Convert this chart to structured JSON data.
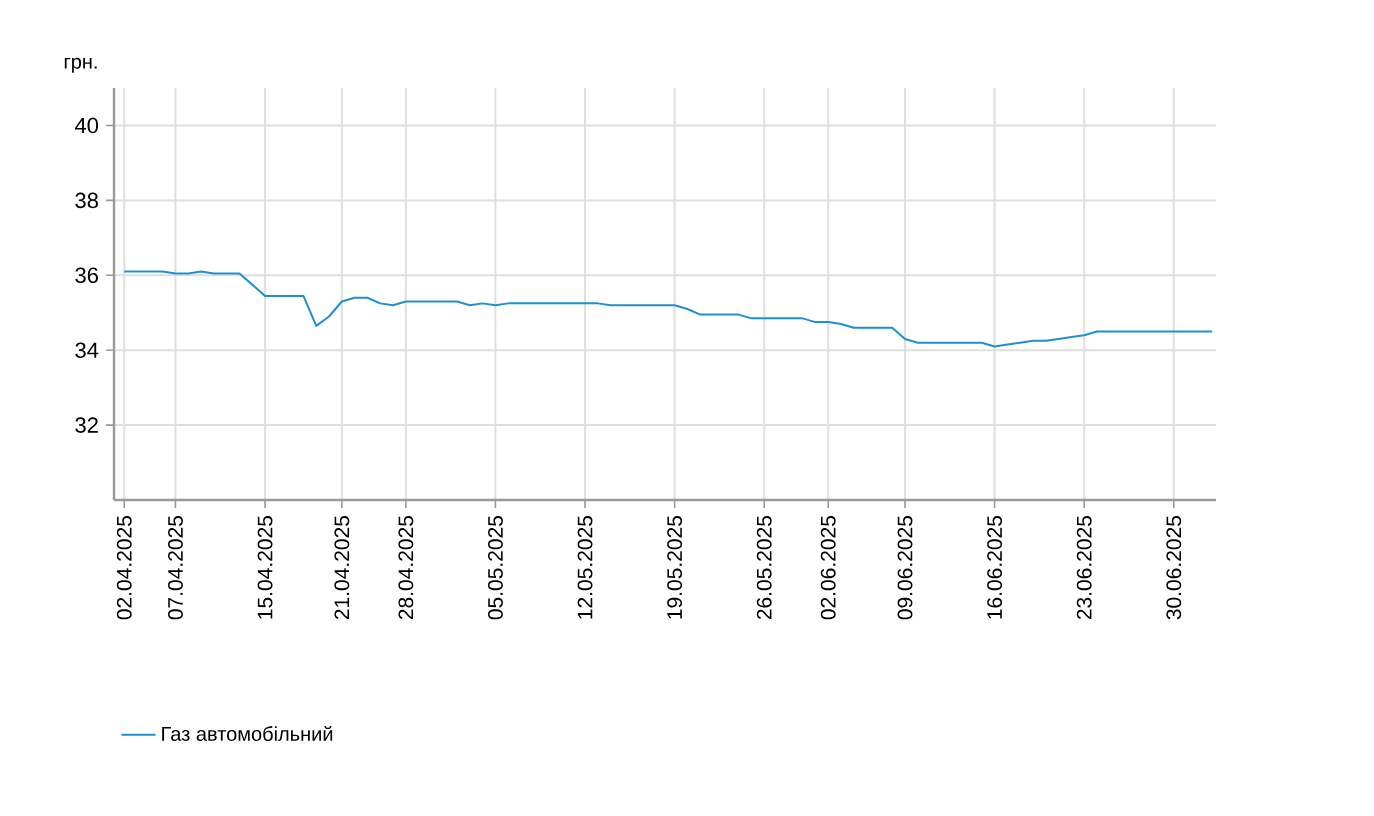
{
  "chart_data": {
    "type": "line",
    "ylabel": "грн.",
    "categories": [
      "02.04.2025",
      null,
      null,
      null,
      "07.04.2025",
      null,
      null,
      null,
      null,
      null,
      null,
      "15.04.2025",
      null,
      null,
      null,
      null,
      null,
      "21.04.2025",
      null,
      null,
      null,
      null,
      "28.04.2025",
      null,
      null,
      null,
      null,
      null,
      null,
      "05.05.2025",
      null,
      null,
      null,
      null,
      null,
      null,
      "12.05.2025",
      null,
      null,
      null,
      null,
      null,
      null,
      "19.05.2025",
      null,
      null,
      null,
      null,
      null,
      null,
      "26.05.2025",
      null,
      null,
      null,
      null,
      "02.06.2025",
      null,
      null,
      null,
      null,
      null,
      "09.06.2025",
      null,
      null,
      null,
      null,
      null,
      null,
      "16.06.2025",
      null,
      null,
      null,
      null,
      null,
      null,
      "23.06.2025",
      null,
      null,
      null,
      null,
      null,
      null,
      "30.06.2025",
      null,
      null,
      null
    ],
    "series": [
      {
        "name": "Газ автомобільний",
        "color": "#1f8fcf",
        "values": [
          36.1,
          36.1,
          36.1,
          36.1,
          36.05,
          36.05,
          36.1,
          36.05,
          36.05,
          36.05,
          35.75,
          35.45,
          35.45,
          35.45,
          35.45,
          34.65,
          34.9,
          35.3,
          35.4,
          35.4,
          35.25,
          35.2,
          35.3,
          35.3,
          35.3,
          35.3,
          35.3,
          35.2,
          35.25,
          35.2,
          35.25,
          35.25,
          35.25,
          35.25,
          35.25,
          35.25,
          35.25,
          35.25,
          35.2,
          35.2,
          35.2,
          35.2,
          35.2,
          35.2,
          35.1,
          34.95,
          34.95,
          34.95,
          34.95,
          34.85,
          34.85,
          34.85,
          34.85,
          34.85,
          34.75,
          34.75,
          34.7,
          34.6,
          34.6,
          34.6,
          34.6,
          34.3,
          34.2,
          34.2,
          34.2,
          34.2,
          34.2,
          34.2,
          34.1,
          34.15,
          34.2,
          34.25,
          34.25,
          34.3,
          34.35,
          34.4,
          34.5,
          34.5,
          34.5,
          34.5,
          34.5,
          34.5,
          34.5,
          34.5,
          34.5,
          34.5
        ]
      }
    ],
    "ylim": [
      30,
      41
    ],
    "yticks": [
      32,
      34,
      36,
      38,
      40
    ],
    "grid": true,
    "legend": "bottom left",
    "marker": "none",
    "line_style": "solid"
  }
}
